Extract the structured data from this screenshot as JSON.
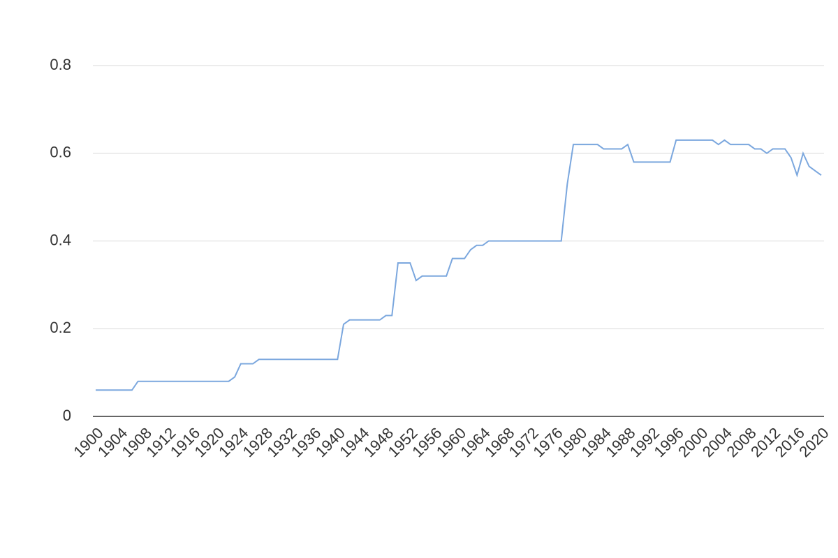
{
  "chart_data": {
    "type": "line",
    "x": [
      1900,
      1901,
      1902,
      1903,
      1904,
      1905,
      1906,
      1907,
      1908,
      1909,
      1910,
      1911,
      1912,
      1913,
      1914,
      1915,
      1916,
      1917,
      1918,
      1919,
      1920,
      1921,
      1922,
      1923,
      1924,
      1925,
      1926,
      1927,
      1928,
      1929,
      1930,
      1931,
      1932,
      1933,
      1934,
      1935,
      1936,
      1937,
      1938,
      1939,
      1940,
      1941,
      1942,
      1943,
      1944,
      1945,
      1946,
      1947,
      1948,
      1949,
      1950,
      1951,
      1952,
      1953,
      1954,
      1955,
      1956,
      1957,
      1958,
      1959,
      1960,
      1961,
      1962,
      1963,
      1964,
      1965,
      1966,
      1967,
      1968,
      1969,
      1970,
      1971,
      1972,
      1973,
      1974,
      1975,
      1976,
      1977,
      1978,
      1979,
      1980,
      1981,
      1982,
      1983,
      1984,
      1985,
      1986,
      1987,
      1988,
      1989,
      1990,
      1991,
      1992,
      1993,
      1994,
      1995,
      1996,
      1997,
      1998,
      1999,
      2000,
      2001,
      2002,
      2003,
      2004,
      2005,
      2006,
      2007,
      2008,
      2009,
      2010,
      2011,
      2012,
      2013,
      2014,
      2015,
      2016,
      2017,
      2018,
      2019,
      2020
    ],
    "values": [
      0.06,
      0.06,
      0.06,
      0.06,
      0.06,
      0.06,
      0.06,
      0.08,
      0.08,
      0.08,
      0.08,
      0.08,
      0.08,
      0.08,
      0.08,
      0.08,
      0.08,
      0.08,
      0.08,
      0.08,
      0.08,
      0.08,
      0.08,
      0.09,
      0.12,
      0.12,
      0.12,
      0.13,
      0.13,
      0.13,
      0.13,
      0.13,
      0.13,
      0.13,
      0.13,
      0.13,
      0.13,
      0.13,
      0.13,
      0.13,
      0.13,
      0.21,
      0.22,
      0.22,
      0.22,
      0.22,
      0.22,
      0.22,
      0.23,
      0.23,
      0.35,
      0.35,
      0.35,
      0.31,
      0.32,
      0.32,
      0.32,
      0.32,
      0.32,
      0.36,
      0.36,
      0.36,
      0.38,
      0.39,
      0.39,
      0.4,
      0.4,
      0.4,
      0.4,
      0.4,
      0.4,
      0.4,
      0.4,
      0.4,
      0.4,
      0.4,
      0.4,
      0.4,
      0.53,
      0.62,
      0.62,
      0.62,
      0.62,
      0.62,
      0.61,
      0.61,
      0.61,
      0.61,
      0.62,
      0.58,
      0.58,
      0.58,
      0.58,
      0.58,
      0.58,
      0.58,
      0.63,
      0.63,
      0.63,
      0.63,
      0.63,
      0.63,
      0.63,
      0.62,
      0.63,
      0.62,
      0.62,
      0.62,
      0.62,
      0.61,
      0.61,
      0.6,
      0.61,
      0.61,
      0.61,
      0.59,
      0.55,
      0.6,
      0.57,
      0.56,
      0.55
    ],
    "color": "#7ba7de",
    "xlim": [
      1900,
      2020
    ],
    "xticks": [
      1900,
      1904,
      1908,
      1912,
      1916,
      1920,
      1924,
      1928,
      1932,
      1936,
      1940,
      1944,
      1948,
      1952,
      1956,
      1960,
      1964,
      1968,
      1972,
      1976,
      1980,
      1984,
      1988,
      1992,
      1996,
      2000,
      2004,
      2008,
      2012,
      2016,
      2020
    ],
    "ylim": [
      0,
      0.8
    ],
    "yticks": [
      0,
      0.2,
      0.4,
      0.6,
      0.8
    ],
    "grid": true
  }
}
